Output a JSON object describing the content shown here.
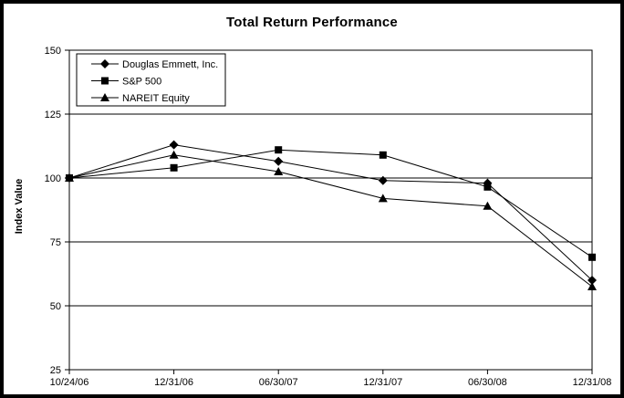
{
  "window": {
    "background": "#ffffff",
    "frame_border_color": "#000000"
  },
  "chart_data": {
    "type": "line",
    "title": "Total Return Performance",
    "xlabel": "",
    "ylabel": "Index Value",
    "categories": [
      "10/24/06",
      "12/31/06",
      "06/30/07",
      "12/31/07",
      "06/30/08",
      "12/31/08"
    ],
    "series": [
      {
        "name": "Douglas Emmett, Inc.",
        "marker": "diamond",
        "color": "#000000",
        "values": [
          100,
          113,
          106.5,
          99,
          98,
          60
        ]
      },
      {
        "name": "S&P 500",
        "marker": "square",
        "color": "#000000",
        "values": [
          100,
          104,
          111,
          109,
          96.5,
          69
        ]
      },
      {
        "name": "NAREIT Equity",
        "marker": "triangle",
        "color": "#000000",
        "values": [
          100,
          109,
          102.5,
          92,
          89,
          57.5
        ]
      }
    ],
    "ylim": [
      25,
      150
    ],
    "yticks": [
      150,
      125,
      100,
      75,
      50,
      25
    ],
    "grid": "horizontal",
    "gridline_color": "#000000",
    "legend_position": "top-left-inside",
    "plot_background": "#ffffff"
  }
}
